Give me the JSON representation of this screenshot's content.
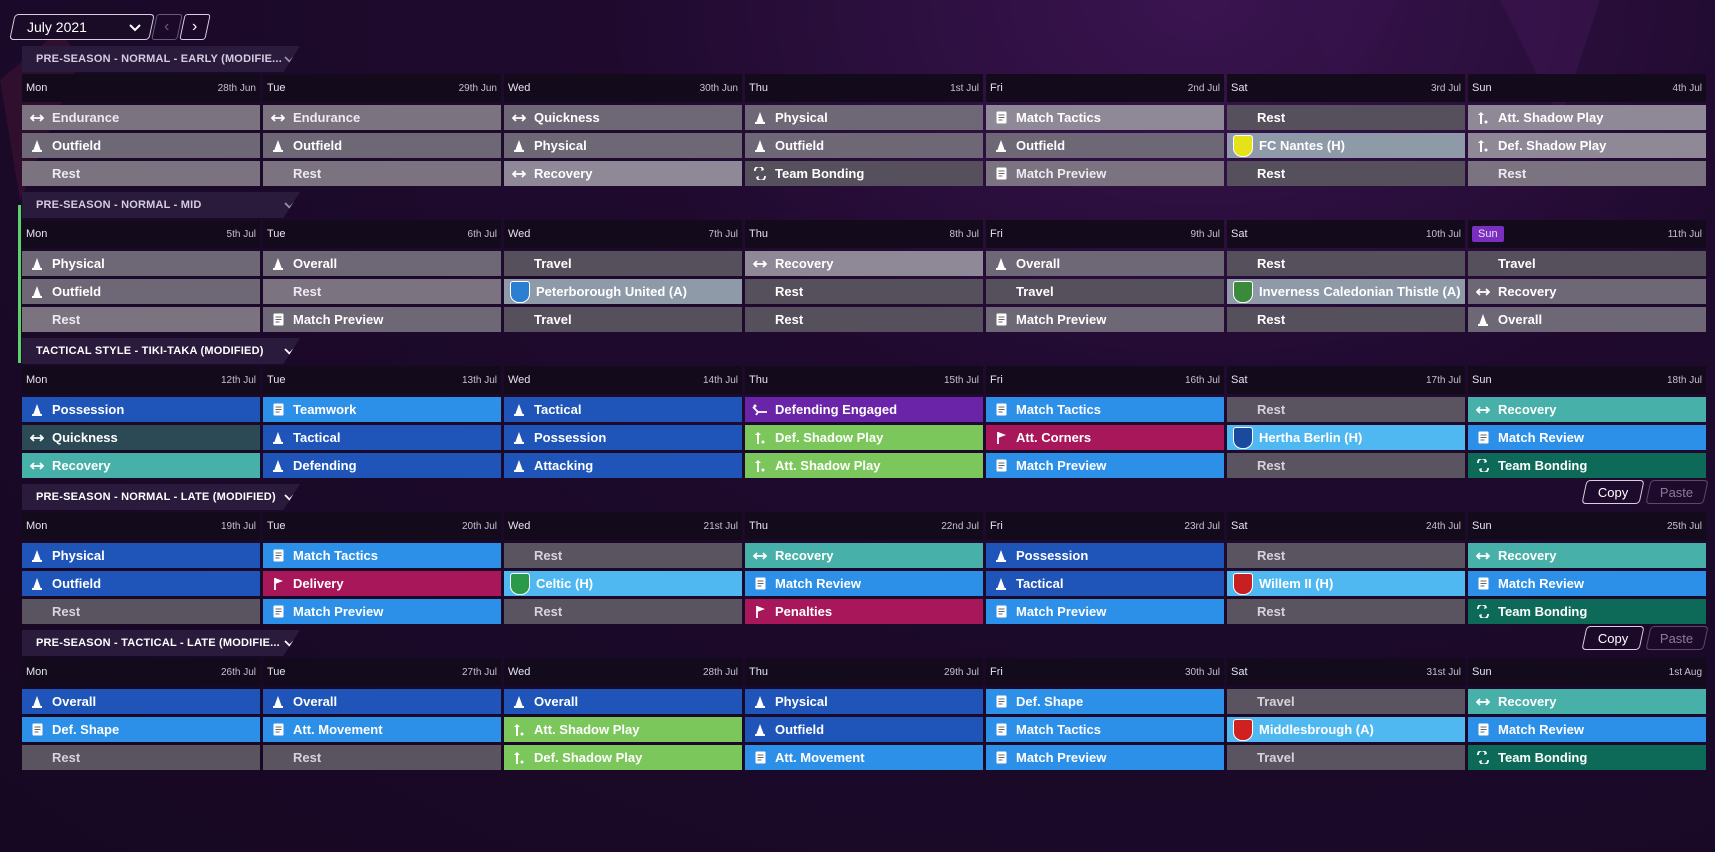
{
  "header": {
    "month": "July 2021",
    "prev": "‹",
    "next": "›"
  },
  "blocks": [
    {
      "title": "PRE-SEASON - NORMAL - EARLY (MODIFIE...",
      "days": [
        {
          "wd": "Mon",
          "date": "28th Jun",
          "s": [
            [
              "Endurance",
              "dbl",
              "grey-l"
            ],
            [
              "Outfield",
              "tri",
              "grey-m"
            ],
            [
              "Rest",
              "",
              "grey-l"
            ]
          ]
        },
        {
          "wd": "Tue",
          "date": "29th Jun",
          "s": [
            [
              "Endurance",
              "dbl",
              "grey-l"
            ],
            [
              "Outfield",
              "tri",
              "grey-m"
            ],
            [
              "Rest",
              "",
              "grey-l"
            ]
          ]
        },
        {
          "wd": "Wed",
          "date": "30th Jun",
          "s": [
            [
              "Quickness",
              "dbl",
              "grey-m"
            ],
            [
              "Physical",
              "tri",
              "grey-m"
            ],
            [
              "Recovery",
              "dbl",
              "grey-xl"
            ]
          ]
        },
        {
          "wd": "Thu",
          "date": "1st Jul",
          "s": [
            [
              "Physical",
              "tri",
              "grey-m"
            ],
            [
              "Outfield",
              "tri",
              "grey-m"
            ],
            [
              "Team Bonding",
              "bond",
              "grey-d"
            ]
          ]
        },
        {
          "wd": "Fri",
          "date": "2nd Jul",
          "s": [
            [
              "Match Tactics",
              "doc",
              "grey-xl"
            ],
            [
              "Outfield",
              "tri",
              "grey-m"
            ],
            [
              "Match Preview",
              "doc",
              "grey-l"
            ]
          ]
        },
        {
          "wd": "Sat",
          "date": "3rd Jul",
          "s": [
            [
              "Rest",
              "",
              "grey-d"
            ],
            [
              "FC Nantes (H)",
              "crest:#e6e21a",
              "slate"
            ],
            [
              "Rest",
              "",
              "grey-d"
            ]
          ]
        },
        {
          "wd": "Sun",
          "date": "4th Jul",
          "s": [
            [
              "Att. Shadow Play",
              "shadow",
              "grey-xl"
            ],
            [
              "Def. Shadow Play",
              "shadow",
              "grey-xl"
            ],
            [
              "Rest",
              "",
              "grey-l"
            ]
          ]
        }
      ]
    },
    {
      "title": "PRE-SEASON - NORMAL - MID",
      "days": [
        {
          "wd": "Mon",
          "date": "5th Jul",
          "s": [
            [
              "Physical",
              "tri",
              "grey-m"
            ],
            [
              "Outfield",
              "tri",
              "grey-m"
            ],
            [
              "Rest",
              "",
              "grey-l"
            ]
          ]
        },
        {
          "wd": "Tue",
          "date": "6th Jul",
          "s": [
            [
              "Overall",
              "tri",
              "grey-m"
            ],
            [
              "Rest",
              "",
              "grey-l"
            ],
            [
              "Match Preview",
              "doc",
              "grey-m"
            ]
          ]
        },
        {
          "wd": "Wed",
          "date": "7th Jul",
          "s": [
            [
              "Travel",
              "",
              "grey-d"
            ],
            [
              "Peterborough United (A)",
              "crest:#2a7fd0",
              "slate"
            ],
            [
              "Travel",
              "",
              "grey-d"
            ]
          ]
        },
        {
          "wd": "Thu",
          "date": "8th Jul",
          "s": [
            [
              "Recovery",
              "dbl",
              "grey-xl"
            ],
            [
              "Rest",
              "",
              "grey-d"
            ],
            [
              "Rest",
              "",
              "grey-d"
            ]
          ]
        },
        {
          "wd": "Fri",
          "date": "9th Jul",
          "s": [
            [
              "Overall",
              "tri",
              "grey-m"
            ],
            [
              "Travel",
              "",
              "grey-d"
            ],
            [
              "Match Preview",
              "doc",
              "grey-m"
            ]
          ]
        },
        {
          "wd": "Sat",
          "date": "10th Jul",
          "s": [
            [
              "Rest",
              "",
              "grey-d"
            ],
            [
              "Inverness Caledonian Thistle (A)",
              "crest:#3a8a3a",
              "slate"
            ],
            [
              "Rest",
              "",
              "grey-d"
            ]
          ]
        },
        {
          "wd": "Sun",
          "date": "11th Jul",
          "highlight": true,
          "s": [
            [
              "Travel",
              "",
              "grey-d"
            ],
            [
              "Recovery",
              "dbl",
              "grey-m"
            ],
            [
              "Overall",
              "tri",
              "grey-m"
            ]
          ]
        }
      ]
    },
    {
      "title": "TACTICAL STYLE - TIKI-TAKA (MODIFIED)",
      "days": [
        {
          "wd": "Mon",
          "date": "12th Jul",
          "s": [
            [
              "Possession",
              "tri",
              "blue-d"
            ],
            [
              "Quickness",
              "dbl",
              "darkteal"
            ],
            [
              "Recovery",
              "dbl",
              "teal"
            ]
          ]
        },
        {
          "wd": "Tue",
          "date": "13th Jul",
          "s": [
            [
              "Teamwork",
              "doc",
              "blue"
            ],
            [
              "Tactical",
              "tri",
              "blue-d"
            ],
            [
              "Defending",
              "tri",
              "blue-d"
            ]
          ]
        },
        {
          "wd": "Wed",
          "date": "14th Jul",
          "s": [
            [
              "Tactical",
              "tri",
              "blue-d"
            ],
            [
              "Possession",
              "tri",
              "blue-d"
            ],
            [
              "Attacking",
              "tri",
              "blue-d"
            ]
          ]
        },
        {
          "wd": "Thu",
          "date": "15th Jul",
          "s": [
            [
              "Defending Engaged",
              "tackle",
              "purple"
            ],
            [
              "Def. Shadow Play",
              "shadow",
              "green"
            ],
            [
              "Att. Shadow Play",
              "shadow",
              "green"
            ]
          ]
        },
        {
          "wd": "Fri",
          "date": "16th Jul",
          "s": [
            [
              "Match Tactics",
              "doc",
              "blue"
            ],
            [
              "Att. Corners",
              "flag",
              "crimson"
            ],
            [
              "Match Preview",
              "doc",
              "blue"
            ]
          ]
        },
        {
          "wd": "Sat",
          "date": "17th Jul",
          "s": [
            [
              "Rest",
              "",
              "grey-dull"
            ],
            [
              "Hertha Berlin (H)",
              "crest:#1a4aa0",
              "blue-sky"
            ],
            [
              "Rest",
              "",
              "grey-dull"
            ]
          ]
        },
        {
          "wd": "Sun",
          "date": "18th Jul",
          "s": [
            [
              "Recovery",
              "dbl",
              "teal"
            ],
            [
              "Match Review",
              "doc",
              "blue"
            ],
            [
              "Team Bonding",
              "bond",
              "teal-d"
            ]
          ]
        }
      ]
    },
    {
      "title": "PRE-SEASON - NORMAL - LATE (MODIFIED)",
      "copy": "Copy",
      "paste": "Paste",
      "days": [
        {
          "wd": "Mon",
          "date": "19th Jul",
          "s": [
            [
              "Physical",
              "tri",
              "blue-d"
            ],
            [
              "Outfield",
              "tri",
              "blue-d"
            ],
            [
              "Rest",
              "",
              "grey-dull"
            ]
          ]
        },
        {
          "wd": "Tue",
          "date": "20th Jul",
          "s": [
            [
              "Match Tactics",
              "doc",
              "blue"
            ],
            [
              "Delivery",
              "flag",
              "crimson"
            ],
            [
              "Match Preview",
              "doc",
              "blue"
            ]
          ]
        },
        {
          "wd": "Wed",
          "date": "21st Jul",
          "s": [
            [
              "Rest",
              "",
              "grey-dull"
            ],
            [
              "Celtic (H)",
              "crest:#2a9a4a",
              "blue-sky"
            ],
            [
              "Rest",
              "",
              "grey-dull"
            ]
          ]
        },
        {
          "wd": "Thu",
          "date": "22nd Jul",
          "s": [
            [
              "Recovery",
              "dbl",
              "teal"
            ],
            [
              "Match Review",
              "doc",
              "blue"
            ],
            [
              "Penalties",
              "flag",
              "crimson"
            ]
          ]
        },
        {
          "wd": "Fri",
          "date": "23rd Jul",
          "s": [
            [
              "Possession",
              "tri",
              "blue-d"
            ],
            [
              "Tactical",
              "tri",
              "blue-d"
            ],
            [
              "Match Preview",
              "doc",
              "blue"
            ]
          ]
        },
        {
          "wd": "Sat",
          "date": "24th Jul",
          "s": [
            [
              "Rest",
              "",
              "grey-dull"
            ],
            [
              "Willem II (H)",
              "crest:#c82020",
              "blue-sky"
            ],
            [
              "Rest",
              "",
              "grey-dull"
            ]
          ]
        },
        {
          "wd": "Sun",
          "date": "25th Jul",
          "s": [
            [
              "Recovery",
              "dbl",
              "teal"
            ],
            [
              "Match Review",
              "doc",
              "blue"
            ],
            [
              "Team Bonding",
              "bond",
              "teal-d"
            ]
          ]
        }
      ]
    },
    {
      "title": "PRE-SEASON - TACTICAL - LATE (MODIFIE...",
      "copy": "Copy",
      "paste": "Paste",
      "days": [
        {
          "wd": "Mon",
          "date": "26th Jul",
          "s": [
            [
              "Overall",
              "tri",
              "blue-d"
            ],
            [
              "Def. Shape",
              "doc",
              "blue"
            ],
            [
              "Rest",
              "",
              "grey-dull"
            ]
          ]
        },
        {
          "wd": "Tue",
          "date": "27th Jul",
          "s": [
            [
              "Overall",
              "tri",
              "blue-d"
            ],
            [
              "Att. Movement",
              "doc",
              "blue"
            ],
            [
              "Rest",
              "",
              "grey-dull"
            ]
          ]
        },
        {
          "wd": "Wed",
          "date": "28th Jul",
          "s": [
            [
              "Overall",
              "tri",
              "blue-d"
            ],
            [
              "Att. Shadow Play",
              "shadow",
              "green"
            ],
            [
              "Def. Shadow Play",
              "shadow",
              "green"
            ]
          ]
        },
        {
          "wd": "Thu",
          "date": "29th Jul",
          "s": [
            [
              "Physical",
              "tri",
              "blue-d"
            ],
            [
              "Outfield",
              "tri",
              "blue-d"
            ],
            [
              "Att. Movement",
              "doc",
              "blue"
            ]
          ]
        },
        {
          "wd": "Fri",
          "date": "30th Jul",
          "s": [
            [
              "Def. Shape",
              "doc",
              "blue"
            ],
            [
              "Match Tactics",
              "doc",
              "blue"
            ],
            [
              "Match Preview",
              "doc",
              "blue"
            ]
          ]
        },
        {
          "wd": "Sat",
          "date": "31st Jul",
          "s": [
            [
              "Travel",
              "",
              "grey-dull"
            ],
            [
              "Middlesbrough (A)",
              "crest:#d02020",
              "blue-sky"
            ],
            [
              "Travel",
              "",
              "grey-dull"
            ]
          ]
        },
        {
          "wd": "Sun",
          "date": "1st Aug",
          "s": [
            [
              "Recovery",
              "dbl",
              "teal"
            ],
            [
              "Match Review",
              "doc",
              "blue"
            ],
            [
              "Team Bonding",
              "bond",
              "teal-d"
            ]
          ]
        }
      ]
    }
  ]
}
